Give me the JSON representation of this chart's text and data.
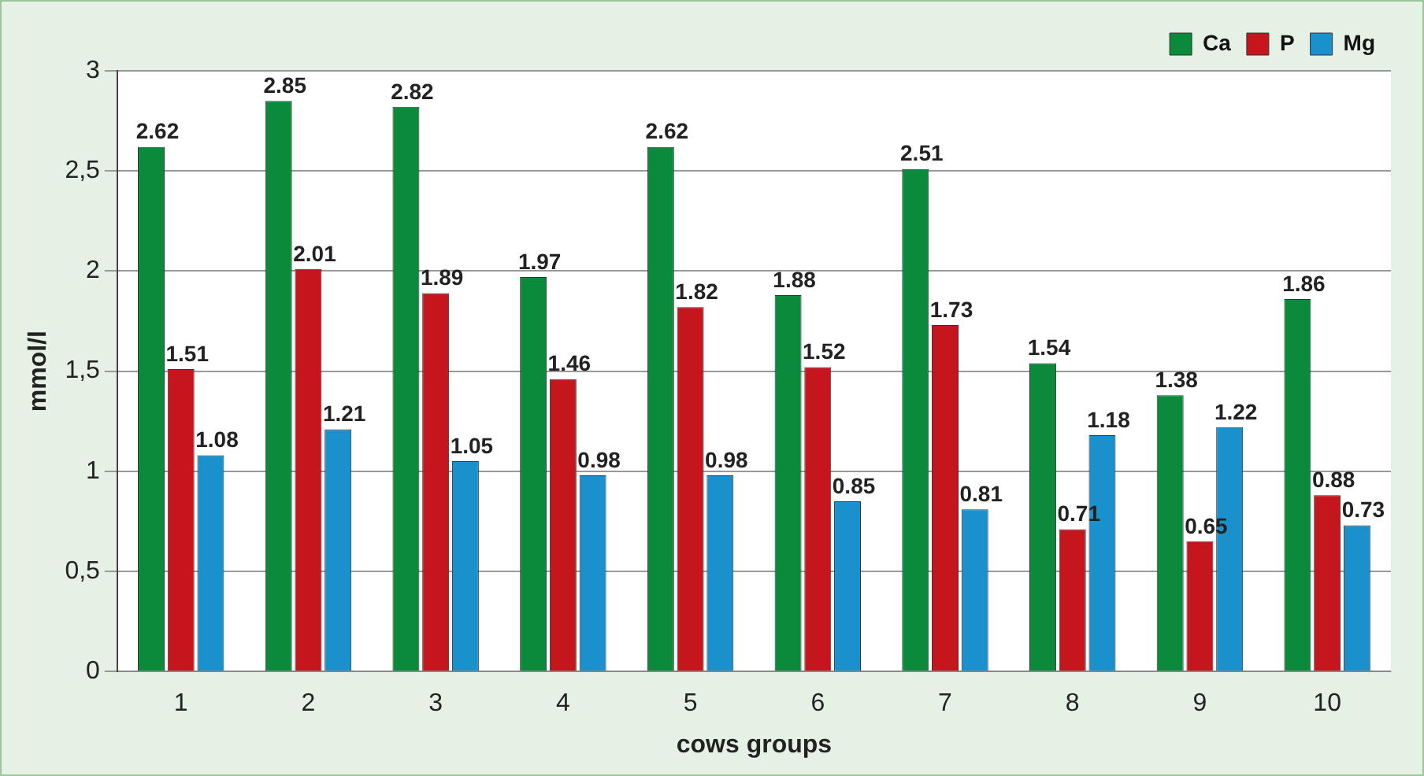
{
  "chart_data": {
    "type": "bar",
    "xlabel": "cows groups",
    "ylabel": "mmol/l",
    "categories": [
      "1",
      "2",
      "3",
      "4",
      "5",
      "6",
      "7",
      "8",
      "9",
      "10"
    ],
    "series": [
      {
        "name": "Ca",
        "color": "#0b8a3c",
        "values": [
          2.62,
          2.85,
          2.82,
          1.97,
          2.62,
          1.88,
          2.51,
          1.54,
          1.38,
          1.86
        ]
      },
      {
        "name": "P",
        "color": "#c4161c",
        "values": [
          1.51,
          2.01,
          1.89,
          1.46,
          1.82,
          1.52,
          1.73,
          0.71,
          0.65,
          0.88
        ]
      },
      {
        "name": "Mg",
        "color": "#1a90cd",
        "values": [
          1.08,
          1.21,
          1.05,
          0.98,
          0.98,
          0.85,
          0.81,
          1.18,
          1.22,
          0.73
        ]
      }
    ],
    "ylim": [
      0,
      3
    ],
    "yticks": [
      0,
      {
        "value": 0.5,
        "label": "0,5"
      },
      1,
      {
        "value": 1.5,
        "label": "1,5"
      },
      2,
      {
        "value": 2.5,
        "label": "2,5"
      },
      3
    ],
    "grid": "y",
    "legend": "top right",
    "data_labels": true
  }
}
